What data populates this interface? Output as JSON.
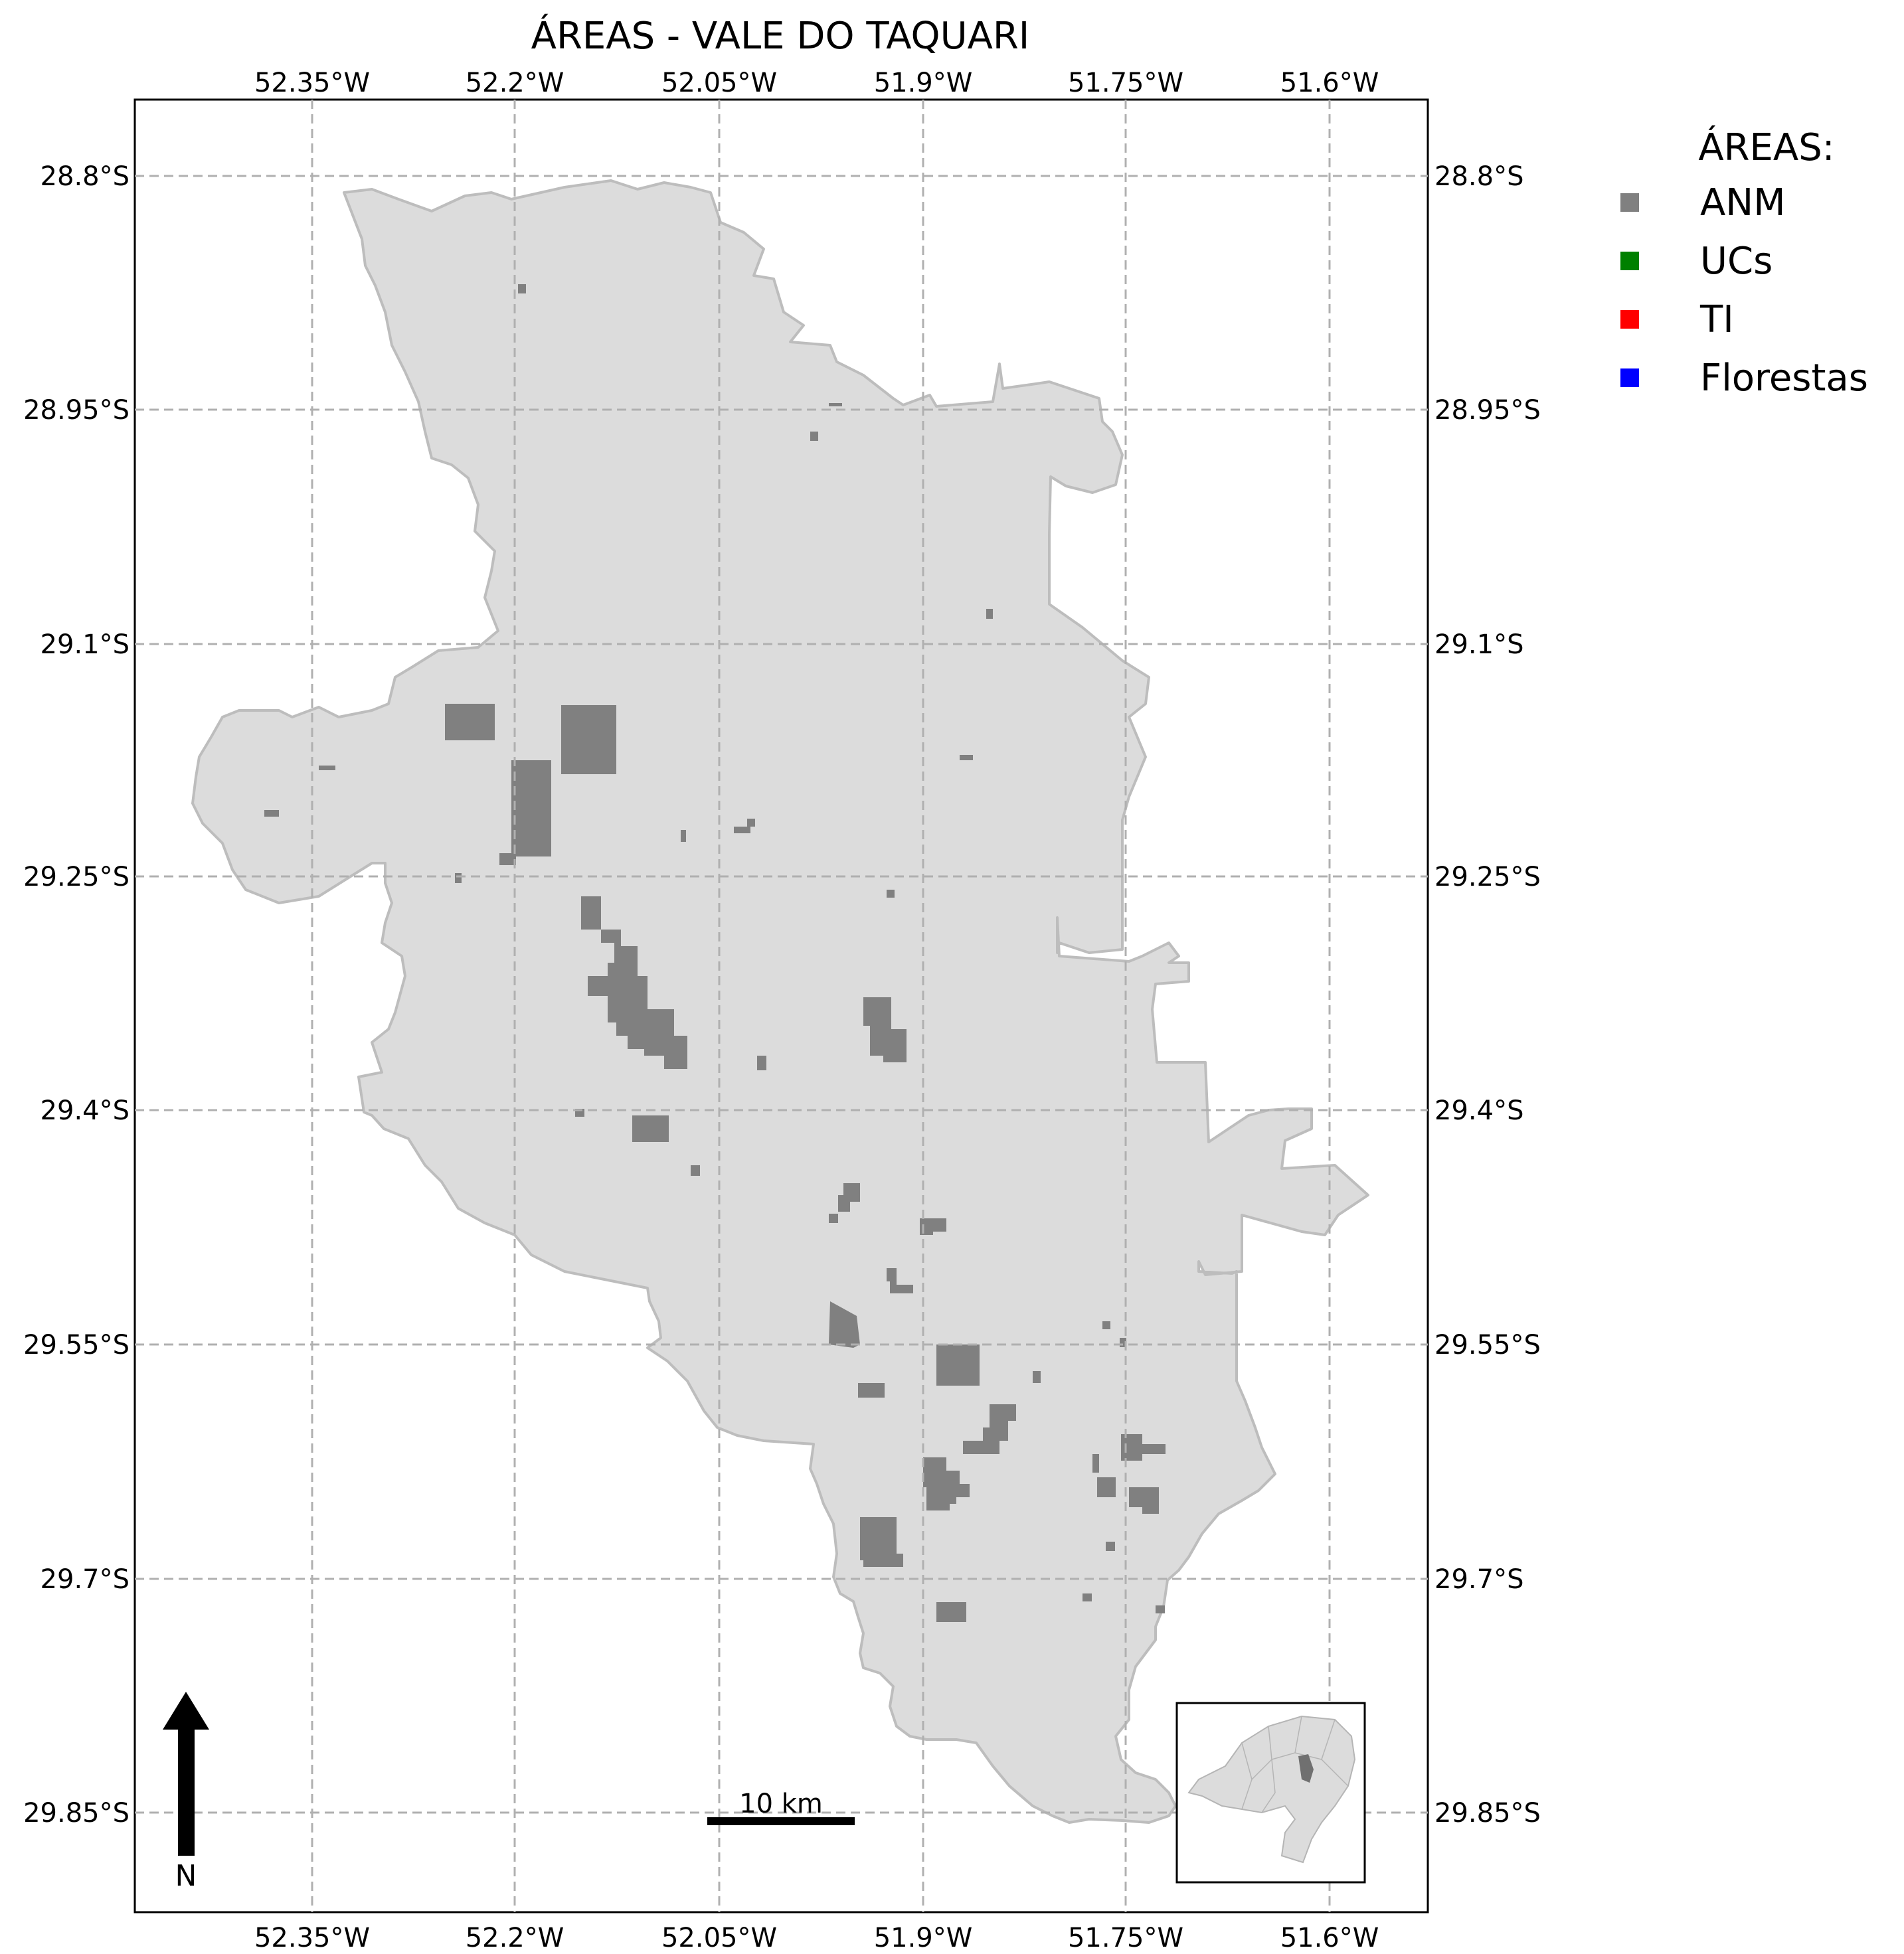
{
  "map": {
    "title": "ÁREAS - VALE DO TAQUARI",
    "lon_ticks": [
      "52.35°W",
      "52.2°W",
      "52.05°W",
      "51.9°W",
      "51.75°W",
      "51.6°W"
    ],
    "lat_ticks": [
      "28.8°S",
      "28.95°S",
      "29.1°S",
      "29.25°S",
      "29.4°S",
      "29.55°S",
      "29.7°S",
      "29.85°S"
    ],
    "region_fill": "#dcdcdc",
    "region_stroke": "#bdbdbd",
    "gridlines": true,
    "scale_bar_label": "10 km",
    "north_arrow_label": "N"
  },
  "legend": {
    "title": "ÁREAS:",
    "items": [
      {
        "label": "ANM",
        "color": "#808080"
      },
      {
        "label": "UCs",
        "color": "#008000"
      },
      {
        "label": "TI",
        "color": "#ff0000"
      },
      {
        "label": "Florestas",
        "color": "#0000ff"
      }
    ]
  }
}
